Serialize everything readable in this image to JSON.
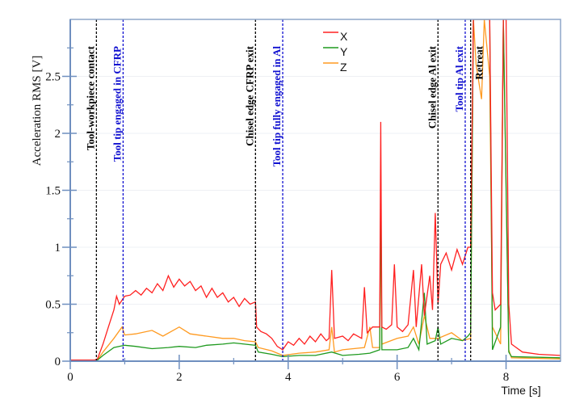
{
  "chart_data": {
    "type": "line",
    "title": "",
    "xlabel": "Time [s]",
    "ylabel": "Acceleration RMS [V]",
    "xlim": [
      0,
      9
    ],
    "ylim": [
      0,
      3
    ],
    "xticks": [
      0,
      2,
      4,
      6,
      8
    ],
    "xtick_labels": [
      "0",
      "2",
      "4",
      "6",
      "8"
    ],
    "yticks": [
      0,
      0.5,
      1,
      1.5,
      2,
      2.5
    ],
    "ytick_labels": [
      "0",
      "0.5",
      "1",
      "1.5",
      "2",
      "2.5"
    ],
    "grid": "horizontal-major",
    "legend_position": "top-center",
    "series": [
      {
        "name": "X",
        "color": "#ff2020",
        "points": [
          [
            0,
            0.01
          ],
          [
            0.45,
            0.01
          ],
          [
            0.5,
            0.02
          ],
          [
            0.6,
            0.15
          ],
          [
            0.7,
            0.3
          ],
          [
            0.8,
            0.45
          ],
          [
            0.85,
            0.57
          ],
          [
            0.9,
            0.5
          ],
          [
            1.0,
            0.57
          ],
          [
            1.1,
            0.58
          ],
          [
            1.2,
            0.62
          ],
          [
            1.3,
            0.58
          ],
          [
            1.4,
            0.64
          ],
          [
            1.5,
            0.6
          ],
          [
            1.6,
            0.68
          ],
          [
            1.7,
            0.62
          ],
          [
            1.8,
            0.75
          ],
          [
            1.9,
            0.65
          ],
          [
            2.0,
            0.72
          ],
          [
            2.1,
            0.66
          ],
          [
            2.2,
            0.7
          ],
          [
            2.3,
            0.62
          ],
          [
            2.4,
            0.66
          ],
          [
            2.5,
            0.56
          ],
          [
            2.6,
            0.64
          ],
          [
            2.7,
            0.56
          ],
          [
            2.8,
            0.6
          ],
          [
            2.9,
            0.52
          ],
          [
            3.0,
            0.56
          ],
          [
            3.1,
            0.48
          ],
          [
            3.2,
            0.55
          ],
          [
            3.3,
            0.5
          ],
          [
            3.4,
            0.52
          ],
          [
            3.42,
            0.3
          ],
          [
            3.5,
            0.26
          ],
          [
            3.6,
            0.24
          ],
          [
            3.7,
            0.2
          ],
          [
            3.8,
            0.13
          ],
          [
            3.9,
            0.1
          ],
          [
            4.0,
            0.17
          ],
          [
            4.1,
            0.14
          ],
          [
            4.2,
            0.2
          ],
          [
            4.3,
            0.15
          ],
          [
            4.4,
            0.22
          ],
          [
            4.5,
            0.17
          ],
          [
            4.6,
            0.24
          ],
          [
            4.7,
            0.18
          ],
          [
            4.75,
            0.2
          ],
          [
            4.8,
            0.8
          ],
          [
            4.85,
            0.2
          ],
          [
            5.0,
            0.22
          ],
          [
            5.1,
            0.18
          ],
          [
            5.2,
            0.24
          ],
          [
            5.35,
            0.2
          ],
          [
            5.4,
            0.65
          ],
          [
            5.45,
            0.25
          ],
          [
            5.55,
            0.3
          ],
          [
            5.68,
            0.3
          ],
          [
            5.7,
            2.1
          ],
          [
            5.72,
            0.3
          ],
          [
            5.8,
            0.28
          ],
          [
            5.9,
            0.32
          ],
          [
            5.95,
            0.85
          ],
          [
            6.0,
            0.3
          ],
          [
            6.1,
            0.26
          ],
          [
            6.2,
            0.32
          ],
          [
            6.3,
            0.8
          ],
          [
            6.35,
            0.3
          ],
          [
            6.45,
            0.85
          ],
          [
            6.5,
            0.4
          ],
          [
            6.6,
            0.75
          ],
          [
            6.65,
            0.45
          ],
          [
            6.7,
            1.3
          ],
          [
            6.75,
            0.5
          ],
          [
            6.8,
            0.85
          ],
          [
            6.9,
            0.95
          ],
          [
            7.0,
            0.8
          ],
          [
            7.1,
            0.98
          ],
          [
            7.2,
            0.85
          ],
          [
            7.3,
            1.0
          ],
          [
            7.35,
            1.0
          ],
          [
            7.4,
            3.0
          ],
          [
            7.7,
            3.0
          ],
          [
            7.75,
            0.6
          ],
          [
            7.8,
            0.45
          ],
          [
            7.9,
            0.5
          ],
          [
            7.95,
            3.0
          ],
          [
            8.0,
            3.0
          ],
          [
            8.05,
            0.5
          ],
          [
            8.1,
            0.15
          ],
          [
            8.3,
            0.08
          ],
          [
            8.6,
            0.06
          ],
          [
            9.0,
            0.05
          ]
        ]
      },
      {
        "name": "Y",
        "color": "#1f9a1f",
        "points": [
          [
            0,
            0.01
          ],
          [
            0.5,
            0.01
          ],
          [
            0.6,
            0.05
          ],
          [
            0.8,
            0.12
          ],
          [
            1.0,
            0.14
          ],
          [
            1.2,
            0.13
          ],
          [
            1.5,
            0.11
          ],
          [
            1.8,
            0.12
          ],
          [
            2.0,
            0.13
          ],
          [
            2.3,
            0.12
          ],
          [
            2.5,
            0.14
          ],
          [
            2.8,
            0.15
          ],
          [
            3.0,
            0.16
          ],
          [
            3.2,
            0.15
          ],
          [
            3.4,
            0.14
          ],
          [
            3.45,
            0.08
          ],
          [
            3.7,
            0.06
          ],
          [
            3.9,
            0.04
          ],
          [
            4.2,
            0.05
          ],
          [
            4.5,
            0.05
          ],
          [
            4.8,
            0.08
          ],
          [
            5.0,
            0.05
          ],
          [
            5.3,
            0.06
          ],
          [
            5.5,
            0.07
          ],
          [
            5.68,
            0.1
          ],
          [
            5.7,
            1.57
          ],
          [
            5.72,
            0.1
          ],
          [
            6.0,
            0.1
          ],
          [
            6.2,
            0.12
          ],
          [
            6.3,
            0.2
          ],
          [
            6.4,
            0.1
          ],
          [
            6.5,
            0.6
          ],
          [
            6.55,
            0.15
          ],
          [
            6.7,
            0.18
          ],
          [
            6.75,
            0.3
          ],
          [
            6.8,
            0.15
          ],
          [
            7.0,
            0.2
          ],
          [
            7.2,
            0.18
          ],
          [
            7.3,
            0.22
          ],
          [
            7.35,
            0.25
          ],
          [
            7.4,
            3.0
          ],
          [
            7.7,
            3.0
          ],
          [
            7.75,
            0.1
          ],
          [
            7.9,
            0.3
          ],
          [
            7.95,
            3.0
          ],
          [
            8.05,
            0.08
          ],
          [
            8.1,
            0.04
          ],
          [
            9.0,
            0.03
          ]
        ]
      },
      {
        "name": "Z",
        "color": "#ff9a20",
        "points": [
          [
            0,
            0.01
          ],
          [
            0.5,
            0.01
          ],
          [
            0.6,
            0.08
          ],
          [
            0.8,
            0.2
          ],
          [
            0.95,
            0.3
          ],
          [
            1.0,
            0.23
          ],
          [
            1.2,
            0.24
          ],
          [
            1.5,
            0.27
          ],
          [
            1.7,
            0.22
          ],
          [
            2.0,
            0.3
          ],
          [
            2.2,
            0.24
          ],
          [
            2.5,
            0.22
          ],
          [
            2.8,
            0.2
          ],
          [
            3.0,
            0.2
          ],
          [
            3.2,
            0.18
          ],
          [
            3.4,
            0.17
          ],
          [
            3.45,
            0.12
          ],
          [
            3.7,
            0.09
          ],
          [
            3.9,
            0.05
          ],
          [
            4.2,
            0.07
          ],
          [
            4.5,
            0.08
          ],
          [
            4.75,
            0.1
          ],
          [
            4.8,
            0.3
          ],
          [
            4.85,
            0.08
          ],
          [
            5.0,
            0.1
          ],
          [
            5.4,
            0.12
          ],
          [
            5.5,
            0.3
          ],
          [
            5.55,
            0.12
          ],
          [
            5.68,
            0.12
          ],
          [
            5.7,
            1.33
          ],
          [
            5.72,
            0.15
          ],
          [
            6.0,
            0.2
          ],
          [
            6.2,
            0.22
          ],
          [
            6.3,
            0.3
          ],
          [
            6.4,
            0.15
          ],
          [
            6.5,
            0.4
          ],
          [
            6.6,
            0.2
          ],
          [
            6.75,
            0.2
          ],
          [
            7.0,
            0.25
          ],
          [
            7.2,
            0.18
          ],
          [
            7.35,
            0.2
          ],
          [
            7.4,
            3.0
          ],
          [
            7.45,
            2.6
          ],
          [
            7.55,
            2.3
          ],
          [
            7.6,
            3.0
          ],
          [
            7.7,
            2.5
          ],
          [
            7.75,
            0.3
          ],
          [
            7.9,
            0.15
          ],
          [
            7.95,
            3.0
          ],
          [
            8.05,
            0.1
          ],
          [
            8.1,
            0.03
          ],
          [
            9.0,
            0.02
          ]
        ]
      }
    ],
    "annotations": [
      {
        "x": 0.48,
        "text": "Tool-workpiece contact",
        "color": "#000000"
      },
      {
        "x": 0.97,
        "text": "Tool tip engaged in CFRP",
        "color": "#1010d0"
      },
      {
        "x": 3.4,
        "text": "Chisel edge CFRP exit",
        "color": "#000000"
      },
      {
        "x": 3.9,
        "text": "Tool tip fully engaged in Al",
        "color": "#1010d0"
      },
      {
        "x": 6.75,
        "text": "Chisel edge Al exit",
        "color": "#000000"
      },
      {
        "x": 7.25,
        "text": "Tool tip Al exit",
        "color": "#1010d0"
      },
      {
        "x": 7.35,
        "text": "Retreat",
        "color": "#000000"
      }
    ]
  }
}
